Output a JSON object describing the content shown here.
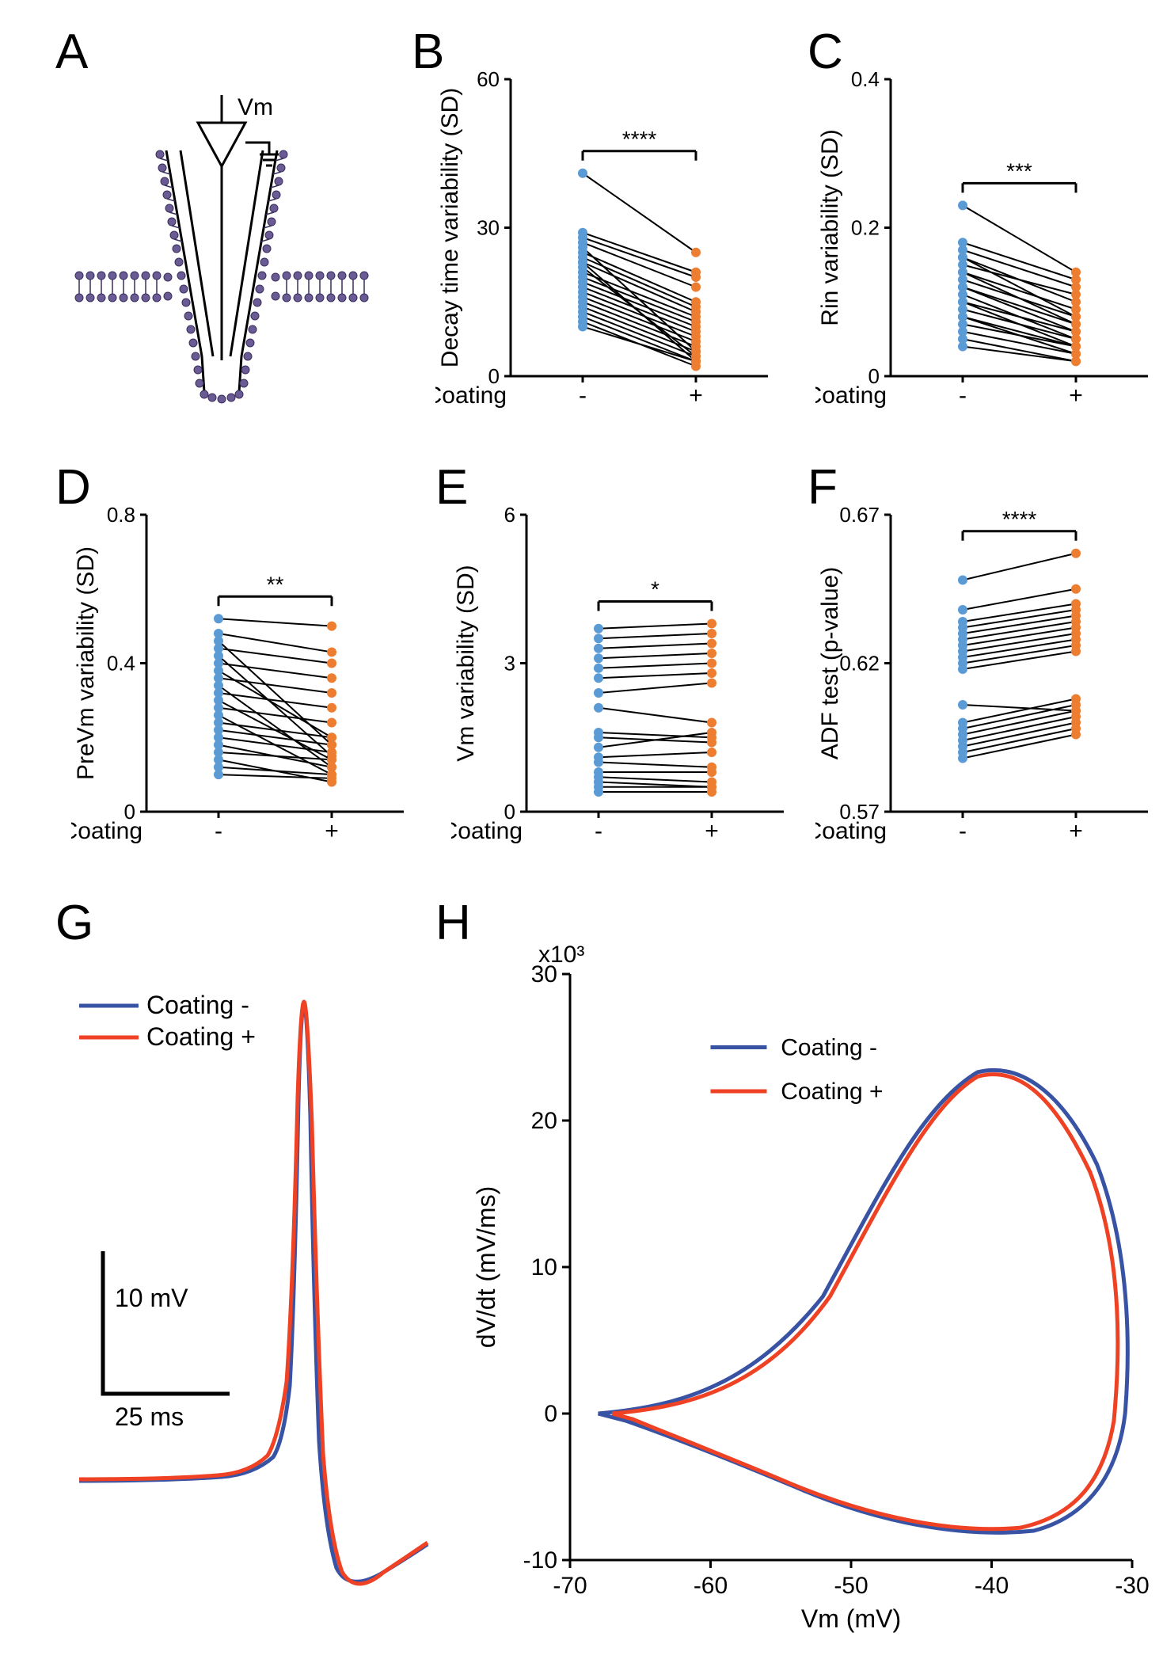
{
  "panels": {
    "A": {
      "label": "A",
      "vm_label": "Vm"
    },
    "B": {
      "label": "B",
      "ylabel": "Decay time variability (SD)",
      "xlabel": "Coating",
      "xticks": [
        "-",
        "+"
      ],
      "ylim": [
        0,
        60
      ],
      "yticks": [
        0,
        30,
        60
      ],
      "sig": "****",
      "color_minus": "#5b9bd5",
      "color_plus": "#ed7d31",
      "pairs": [
        [
          41,
          25
        ],
        [
          29,
          21
        ],
        [
          28,
          20
        ],
        [
          27,
          18
        ],
        [
          26,
          5
        ],
        [
          25,
          15
        ],
        [
          24,
          14
        ],
        [
          23,
          3
        ],
        [
          23,
          13
        ],
        [
          22,
          4
        ],
        [
          21,
          12
        ],
        [
          20,
          11
        ],
        [
          19,
          10
        ],
        [
          18,
          9
        ],
        [
          17,
          8
        ],
        [
          16,
          7
        ],
        [
          15,
          6
        ],
        [
          14,
          5
        ],
        [
          13,
          4
        ],
        [
          12,
          3
        ],
        [
          11,
          2
        ],
        [
          10,
          3
        ]
      ]
    },
    "C": {
      "label": "C",
      "ylabel": "Rin variability (SD)",
      "xlabel": "Coating",
      "xticks": [
        "-",
        "+"
      ],
      "ylim": [
        0,
        0.4
      ],
      "yticks": [
        0,
        0.2,
        0.4
      ],
      "sig": "***",
      "color_minus": "#5b9bd5",
      "color_plus": "#ed7d31",
      "pairs": [
        [
          0.23,
          0.14
        ],
        [
          0.18,
          0.13
        ],
        [
          0.17,
          0.12
        ],
        [
          0.16,
          0.1
        ],
        [
          0.16,
          0.08
        ],
        [
          0.15,
          0.11
        ],
        [
          0.14,
          0.07
        ],
        [
          0.14,
          0.09
        ],
        [
          0.13,
          0.08
        ],
        [
          0.12,
          0.06
        ],
        [
          0.12,
          0.07
        ],
        [
          0.11,
          0.05
        ],
        [
          0.1,
          0.06
        ],
        [
          0.1,
          0.04
        ],
        [
          0.09,
          0.05
        ],
        [
          0.08,
          0.04
        ],
        [
          0.08,
          0.03
        ],
        [
          0.07,
          0.04
        ],
        [
          0.06,
          0.03
        ],
        [
          0.05,
          0.02
        ],
        [
          0.04,
          0.02
        ]
      ]
    },
    "D": {
      "label": "D",
      "ylabel": "PreVm variability (SD)",
      "xlabel": "Coating",
      "xticks": [
        "-",
        "+"
      ],
      "ylim": [
        0,
        0.8
      ],
      "yticks": [
        0,
        0.4,
        0.8
      ],
      "sig": "**",
      "color_minus": "#5b9bd5",
      "color_plus": "#ed7d31",
      "pairs": [
        [
          0.52,
          0.5
        ],
        [
          0.48,
          0.43
        ],
        [
          0.46,
          0.18
        ],
        [
          0.44,
          0.4
        ],
        [
          0.42,
          0.15
        ],
        [
          0.4,
          0.36
        ],
        [
          0.38,
          0.2
        ],
        [
          0.36,
          0.32
        ],
        [
          0.34,
          0.12
        ],
        [
          0.32,
          0.28
        ],
        [
          0.3,
          0.14
        ],
        [
          0.28,
          0.24
        ],
        [
          0.26,
          0.1
        ],
        [
          0.24,
          0.2
        ],
        [
          0.22,
          0.18
        ],
        [
          0.2,
          0.16
        ],
        [
          0.18,
          0.12
        ],
        [
          0.16,
          0.14
        ],
        [
          0.14,
          0.08
        ],
        [
          0.12,
          0.1
        ],
        [
          0.1,
          0.09
        ]
      ]
    },
    "E": {
      "label": "E",
      "ylabel": "Vm variability (SD)",
      "xlabel": "Coating",
      "xticks": [
        "-",
        "+"
      ],
      "ylim": [
        0,
        6
      ],
      "yticks": [
        0,
        3,
        6
      ],
      "sig": "*",
      "color_minus": "#5b9bd5",
      "color_plus": "#ed7d31",
      "pairs": [
        [
          3.7,
          3.8
        ],
        [
          3.5,
          3.6
        ],
        [
          3.3,
          3.4
        ],
        [
          3.1,
          3.2
        ],
        [
          2.9,
          3.0
        ],
        [
          2.7,
          2.8
        ],
        [
          2.4,
          2.6
        ],
        [
          2.1,
          1.8
        ],
        [
          1.6,
          1.5
        ],
        [
          1.5,
          1.4
        ],
        [
          1.3,
          1.6
        ],
        [
          1.1,
          1.2
        ],
        [
          1.0,
          0.9
        ],
        [
          0.8,
          0.8
        ],
        [
          0.7,
          0.6
        ],
        [
          0.6,
          0.5
        ],
        [
          0.5,
          0.5
        ],
        [
          0.4,
          0.4
        ]
      ]
    },
    "F": {
      "label": "F",
      "ylabel": "ADF test (p-value)",
      "xlabel": "Coating",
      "xticks": [
        "-",
        "+"
      ],
      "ylim": [
        0.57,
        0.67
      ],
      "yticks": [
        0.57,
        0.62,
        0.67
      ],
      "sig": "****",
      "color_minus": "#5b9bd5",
      "color_plus": "#ed7d31",
      "pairs": [
        [
          0.648,
          0.657
        ],
        [
          0.638,
          0.645
        ],
        [
          0.634,
          0.64
        ],
        [
          0.632,
          0.638
        ],
        [
          0.63,
          0.636
        ],
        [
          0.628,
          0.634
        ],
        [
          0.626,
          0.632
        ],
        [
          0.624,
          0.63
        ],
        [
          0.622,
          0.628
        ],
        [
          0.62,
          0.626
        ],
        [
          0.618,
          0.624
        ],
        [
          0.606,
          0.604
        ],
        [
          0.6,
          0.608
        ],
        [
          0.598,
          0.606
        ],
        [
          0.596,
          0.604
        ],
        [
          0.594,
          0.602
        ],
        [
          0.592,
          0.6
        ],
        [
          0.59,
          0.598
        ],
        [
          0.588,
          0.596
        ]
      ]
    },
    "G": {
      "label": "G",
      "legend": [
        "Coating -",
        "Coating +"
      ],
      "colors": [
        "#3953a4",
        "#ef4123"
      ],
      "scalebar": {
        "v": "10 mV",
        "h": "25 ms"
      }
    },
    "H": {
      "label": "H",
      "legend": [
        "Coating -",
        "Coating +"
      ],
      "colors": [
        "#3953a4",
        "#ef4123"
      ],
      "xlabel": "Vm (mV)",
      "ylabel": "dV/dt (mV/ms)",
      "ymult": "x10³",
      "xlim": [
        -70,
        -30
      ],
      "ylim": [
        -10,
        30
      ],
      "xticks": [
        -70,
        -60,
        -50,
        -40,
        -30
      ],
      "yticks": [
        -10,
        0,
        10,
        20,
        30
      ]
    }
  },
  "layout": {
    "font_family": "Arial",
    "label_fontsize": 62,
    "axis_fontsize": 28,
    "tick_fontsize": 26,
    "line_color": "#000000",
    "background": "#ffffff"
  }
}
